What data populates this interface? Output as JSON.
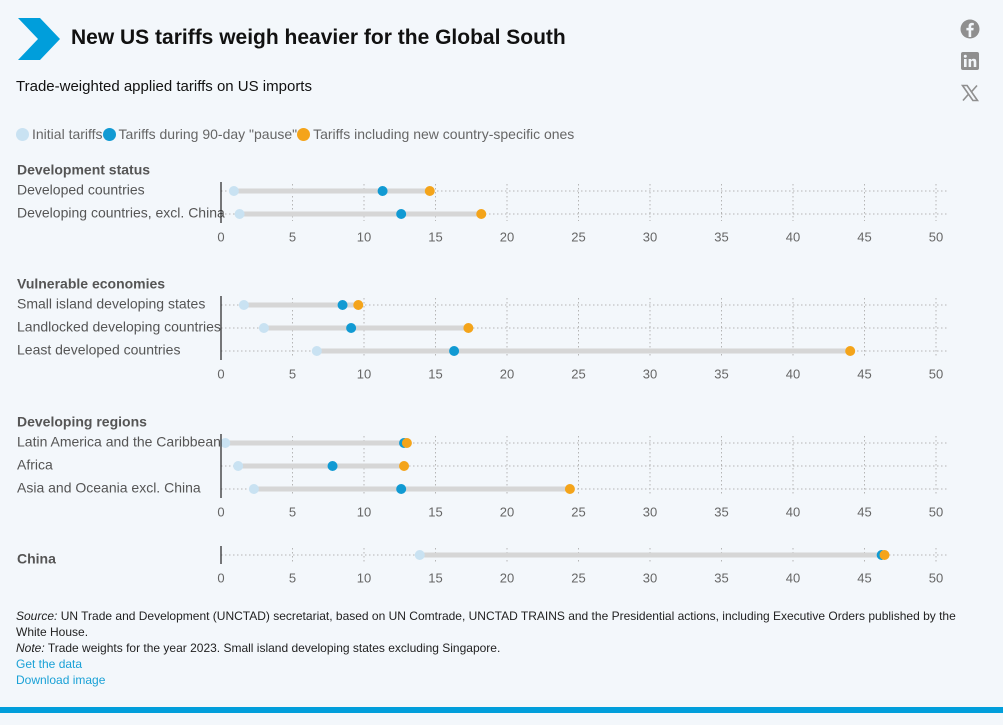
{
  "header": {
    "title": "New US tariffs weigh heavier for the Global South",
    "subtitle": "Trade-weighted applied tariffs on US imports"
  },
  "colors": {
    "brand": "#009edb",
    "initial": "#c9e2f2",
    "pause": "#119ad3",
    "new": "#f4a41a"
  },
  "social": [
    "facebook-icon",
    "linkedin-icon",
    "x-icon"
  ],
  "chart_data": {
    "type": "dumbbell",
    "legend": [
      {
        "label": "Initial tariffs",
        "color": "#c9e2f2"
      },
      {
        "label": "Tariffs during 90-day \"pause\"",
        "color": "#119ad3"
      },
      {
        "label": "Tariffs including new country-specific ones",
        "color": "#f4a41a"
      }
    ],
    "xlim": [
      0,
      50
    ],
    "xticks": [
      0,
      5,
      10,
      15,
      20,
      25,
      30,
      35,
      40,
      45,
      50
    ],
    "groups": [
      {
        "title": "Development status",
        "rows": [
          {
            "label": "Developed countries",
            "initial": 0.9,
            "pause": 11.3,
            "new": 14.6
          },
          {
            "label": "Developing countries, excl. China",
            "initial": 1.3,
            "pause": 12.6,
            "new": 18.2
          }
        ]
      },
      {
        "title": "Vulnerable economies",
        "rows": [
          {
            "label": "Small island developing states",
            "initial": 1.6,
            "pause": 8.5,
            "new": 9.6
          },
          {
            "label": "Landlocked developing countries",
            "initial": 3.0,
            "pause": 9.1,
            "new": 17.3
          },
          {
            "label": "Least developed countries",
            "initial": 6.7,
            "pause": 16.3,
            "new": 44.0
          }
        ]
      },
      {
        "title": "Developing regions",
        "rows": [
          {
            "label": "Latin America and the Caribbean",
            "initial": 0.3,
            "pause": 12.8,
            "new": 13.0
          },
          {
            "label": "Africa",
            "initial": 1.2,
            "pause": 7.8,
            "new": 12.8
          },
          {
            "label": "Asia and Oceania excl. China",
            "initial": 2.3,
            "pause": 12.6,
            "new": 24.4
          }
        ]
      },
      {
        "title": "China",
        "rows": [
          {
            "label": "",
            "initial": 13.9,
            "pause": 46.2,
            "new": 46.4
          }
        ]
      }
    ]
  },
  "footer": {
    "source_label": "Source:",
    "source_text": "UN Trade and Development (UNCTAD) secretariat, based on UN Comtrade, UNCTAD TRAINS and the Presidential actions, including Executive Orders published by the White House.",
    "note_label": "Note:",
    "note_text": "Trade weights for the year 2023. Small island developing states excluding Singapore.",
    "get_data": "Get the data",
    "download_image": "Download image"
  }
}
